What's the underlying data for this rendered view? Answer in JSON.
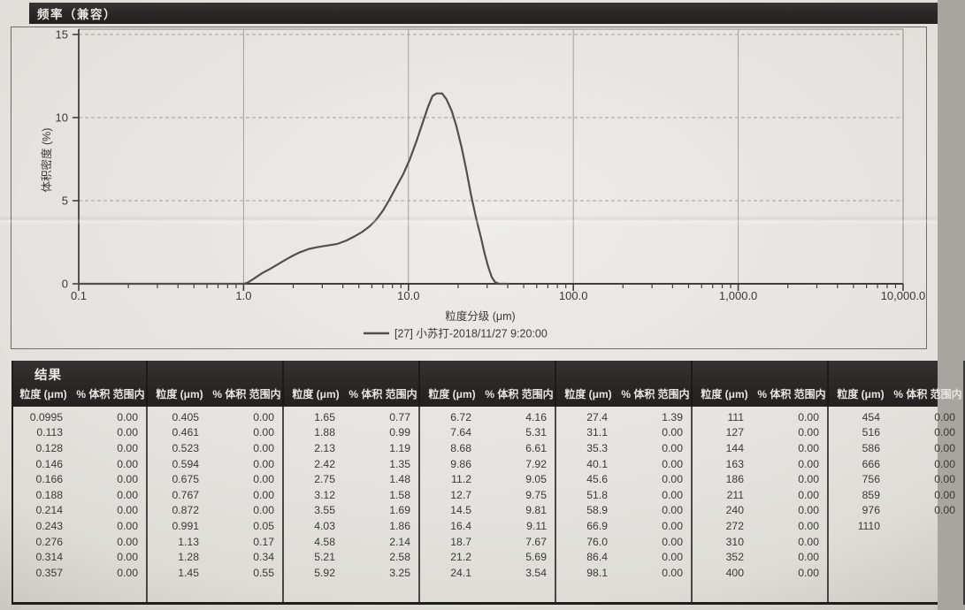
{
  "chart_data": {
    "type": "line",
    "title": "频率（兼容）",
    "xlabel": "粒度分级 (μm)",
    "ylabel": "体积密度 (%)",
    "x_scale": "log",
    "xlim": [
      0.1,
      10000
    ],
    "ylim": [
      0,
      15
    ],
    "grid": true,
    "y_tick_values": [
      0,
      5,
      10,
      15
    ],
    "y_tick_labels": [
      "0",
      "5",
      "10",
      "15"
    ],
    "y_gridline_values": [
      5,
      10,
      15
    ],
    "x_tick_values": [
      0.1,
      1,
      10,
      100,
      1000,
      10000
    ],
    "x_tick_labels": [
      "0.1",
      "1.0",
      "10.0",
      "100.0",
      "1,000.0",
      "10,000.0"
    ],
    "x_gridline_values": [
      1,
      10,
      100,
      1000
    ],
    "legend_position": "bottom",
    "series": [
      {
        "name": "[27] 小苏打-2018/11/27 9:20:00",
        "points": [
          [
            0.1,
            0
          ],
          [
            1.0,
            0
          ],
          [
            1.05,
            0.05
          ],
          [
            1.15,
            0.3
          ],
          [
            1.3,
            0.65
          ],
          [
            1.45,
            0.9
          ],
          [
            1.6,
            1.15
          ],
          [
            1.8,
            1.45
          ],
          [
            2.0,
            1.7
          ],
          [
            2.2,
            1.9
          ],
          [
            2.5,
            2.1
          ],
          [
            2.8,
            2.2
          ],
          [
            3.2,
            2.3
          ],
          [
            3.7,
            2.4
          ],
          [
            4.2,
            2.6
          ],
          [
            4.7,
            2.85
          ],
          [
            5.2,
            3.1
          ],
          [
            5.8,
            3.45
          ],
          [
            6.3,
            3.8
          ],
          [
            7.0,
            4.4
          ],
          [
            7.6,
            5.0
          ],
          [
            8.4,
            5.8
          ],
          [
            9.3,
            6.6
          ],
          [
            10.2,
            7.5
          ],
          [
            11.2,
            8.6
          ],
          [
            12.2,
            9.7
          ],
          [
            13.2,
            10.7
          ],
          [
            14.0,
            11.3
          ],
          [
            14.8,
            11.45
          ],
          [
            16.0,
            11.45
          ],
          [
            17.0,
            11.1
          ],
          [
            18.3,
            10.4
          ],
          [
            19.5,
            9.5
          ],
          [
            21,
            8.2
          ],
          [
            22.5,
            6.8
          ],
          [
            24,
            5.3
          ],
          [
            25.8,
            3.9
          ],
          [
            27.5,
            2.8
          ],
          [
            29,
            1.8
          ],
          [
            30.5,
            1.0
          ],
          [
            32,
            0.4
          ],
          [
            33.5,
            0.1
          ],
          [
            35.5,
            0
          ],
          [
            40,
            0
          ]
        ]
      }
    ]
  },
  "table": {
    "title": "结果",
    "size_header": "粒度 (μm)",
    "pct_header": "% 体积 范围内",
    "groups": [
      {
        "rows": [
          [
            "0.0995",
            "0.00"
          ],
          [
            "0.113",
            "0.00"
          ],
          [
            "0.128",
            "0.00"
          ],
          [
            "0.146",
            "0.00"
          ],
          [
            "0.166",
            "0.00"
          ],
          [
            "0.188",
            "0.00"
          ],
          [
            "0.214",
            "0.00"
          ],
          [
            "0.243",
            "0.00"
          ],
          [
            "0.276",
            "0.00"
          ],
          [
            "0.314",
            "0.00"
          ],
          [
            "0.357",
            "0.00"
          ]
        ]
      },
      {
        "rows": [
          [
            "0.405",
            "0.00"
          ],
          [
            "0.461",
            "0.00"
          ],
          [
            "0.523",
            "0.00"
          ],
          [
            "0.594",
            "0.00"
          ],
          [
            "0.675",
            "0.00"
          ],
          [
            "0.767",
            "0.00"
          ],
          [
            "0.872",
            "0.00"
          ],
          [
            "0.991",
            "0.05"
          ],
          [
            "1.13",
            "0.17"
          ],
          [
            "1.28",
            "0.34"
          ],
          [
            "1.45",
            "0.55"
          ]
        ]
      },
      {
        "rows": [
          [
            "1.65",
            "0.77"
          ],
          [
            "1.88",
            "0.99"
          ],
          [
            "2.13",
            "1.19"
          ],
          [
            "2.42",
            "1.35"
          ],
          [
            "2.75",
            "1.48"
          ],
          [
            "3.12",
            "1.58"
          ],
          [
            "3.55",
            "1.69"
          ],
          [
            "4.03",
            "1.86"
          ],
          [
            "4.58",
            "2.14"
          ],
          [
            "5.21",
            "2.58"
          ],
          [
            "5.92",
            "3.25"
          ]
        ]
      },
      {
        "rows": [
          [
            "6.72",
            "4.16"
          ],
          [
            "7.64",
            "5.31"
          ],
          [
            "8.68",
            "6.61"
          ],
          [
            "9.86",
            "7.92"
          ],
          [
            "11.2",
            "9.05"
          ],
          [
            "12.7",
            "9.75"
          ],
          [
            "14.5",
            "9.81"
          ],
          [
            "16.4",
            "9.11"
          ],
          [
            "18.7",
            "7.67"
          ],
          [
            "21.2",
            "5.69"
          ],
          [
            "24.1",
            "3.54"
          ]
        ]
      },
      {
        "rows": [
          [
            "27.4",
            "1.39"
          ],
          [
            "31.1",
            "0.00"
          ],
          [
            "35.3",
            "0.00"
          ],
          [
            "40.1",
            "0.00"
          ],
          [
            "45.6",
            "0.00"
          ],
          [
            "51.8",
            "0.00"
          ],
          [
            "58.9",
            "0.00"
          ],
          [
            "66.9",
            "0.00"
          ],
          [
            "76.0",
            "0.00"
          ],
          [
            "86.4",
            "0.00"
          ],
          [
            "98.1",
            "0.00"
          ]
        ]
      },
      {
        "rows": [
          [
            "111",
            "0.00"
          ],
          [
            "127",
            "0.00"
          ],
          [
            "144",
            "0.00"
          ],
          [
            "163",
            "0.00"
          ],
          [
            "186",
            "0.00"
          ],
          [
            "211",
            "0.00"
          ],
          [
            "240",
            "0.00"
          ],
          [
            "272",
            "0.00"
          ],
          [
            "310",
            "0.00"
          ],
          [
            "352",
            "0.00"
          ],
          [
            "400",
            "0.00"
          ]
        ]
      },
      {
        "rows": [
          [
            "454",
            "0.00"
          ],
          [
            "516",
            "0.00"
          ],
          [
            "586",
            "0.00"
          ],
          [
            "666",
            "0.00"
          ],
          [
            "756",
            "0.00"
          ],
          [
            "859",
            "0.00"
          ],
          [
            "976",
            "0.00"
          ],
          [
            "1110",
            ""
          ],
          [
            "",
            ""
          ],
          [
            "",
            ""
          ],
          [
            "",
            ""
          ]
        ]
      }
    ]
  },
  "colors": {
    "paper": "#e5e3df",
    "header_bar": "#2a2927",
    "curve": "#52504d",
    "grid": "#a3a09a",
    "axis": "#403f3d",
    "table_line": "#1f1e1c",
    "text_dark": "#3a3937",
    "text_light": "#e9e7e3"
  }
}
